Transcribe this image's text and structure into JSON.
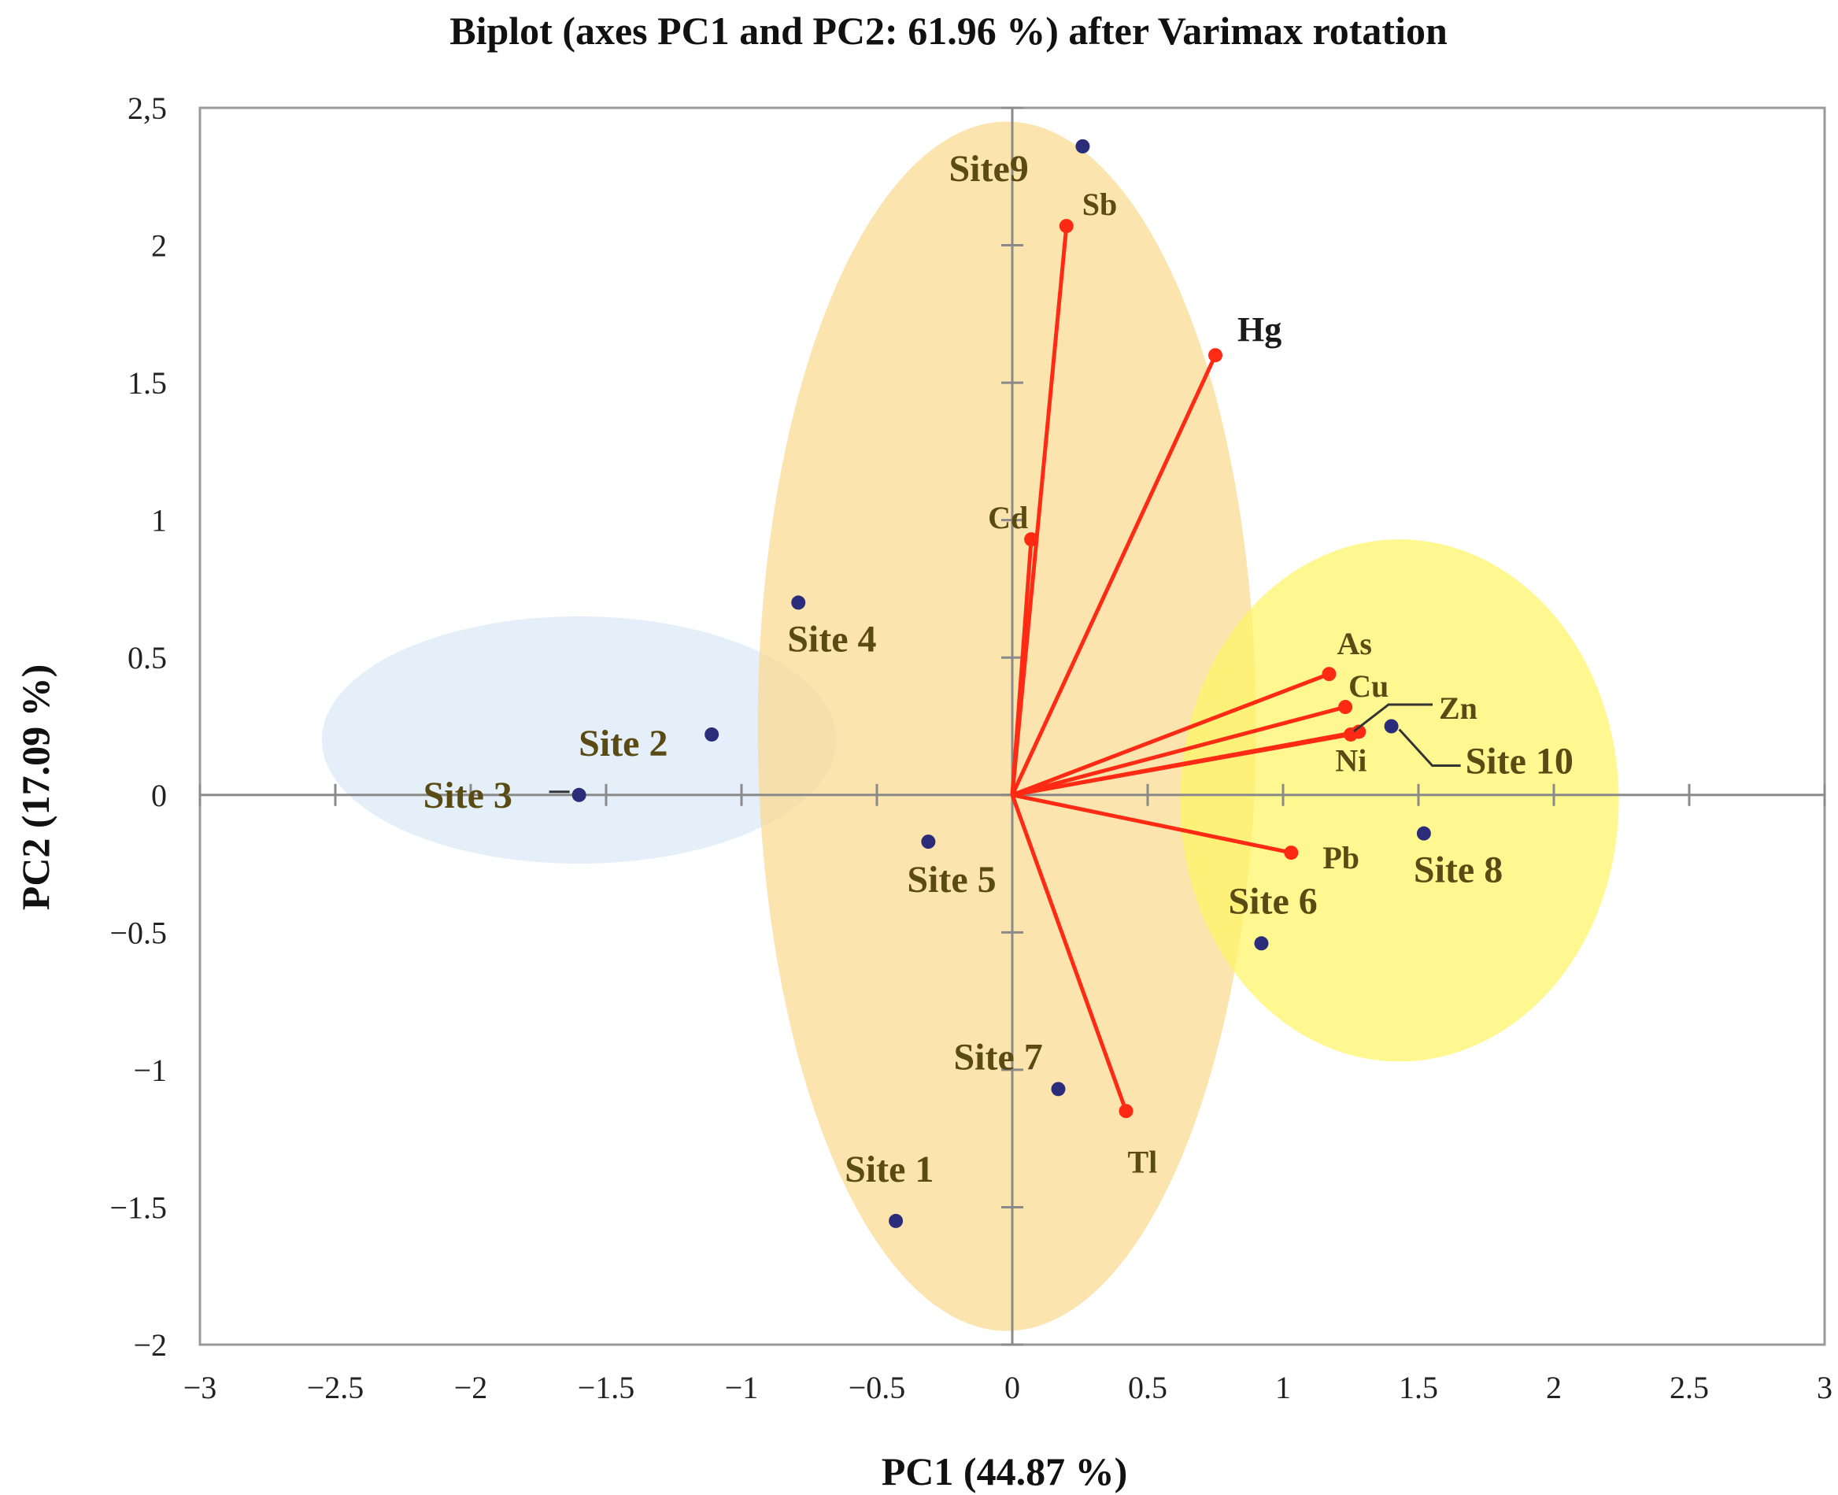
{
  "chart_data": {
    "type": "scatter",
    "subtype": "biplot",
    "title": "Biplot (axes PC1 and PC2: 61.96 %) after Varimax rotation",
    "xlabel": "PC1 (44.87 %)",
    "ylabel": "PC2 (17.09 %)",
    "xlim": [
      -3,
      3
    ],
    "ylim": [
      -2,
      2.5
    ],
    "x_ticks": [
      "−3",
      "−2.5",
      "−2",
      "−1.5",
      "−1",
      "−0.5",
      "0",
      "0.5",
      "1",
      "1.5",
      "2",
      "2.5",
      "3"
    ],
    "y_ticks": [
      "−2",
      "−1.5",
      "−1",
      "−0.5",
      "0",
      "0.5",
      "1",
      "1.5",
      "2",
      "2,5"
    ],
    "grid": false,
    "colors": {
      "variable": "#ff2a14",
      "observation": "#2b2d7a",
      "site_label": "#5a4a14",
      "group_left": "#dbe9f6",
      "group_middle": "#fbd98f",
      "group_right": "#fff566"
    },
    "groups": [
      {
        "name": "left-cluster",
        "center": [
          -1.6,
          0.2
        ],
        "rx": 0.95,
        "ry": 0.45,
        "color": "#dbe9f6"
      },
      {
        "name": "middle-cluster",
        "center": [
          -0.02,
          0.25
        ],
        "rx": 0.92,
        "ry": 2.2,
        "color": "#fbd98f"
      },
      {
        "name": "right-cluster",
        "center": [
          1.43,
          -0.02
        ],
        "rx": 0.81,
        "ry": 0.95,
        "color": "#fff566"
      }
    ],
    "observations": [
      {
        "label": "Site 1",
        "x": -0.43,
        "y": -1.55
      },
      {
        "label": "Site 2",
        "x": -1.11,
        "y": 0.22
      },
      {
        "label": "Site 3",
        "x": -1.6,
        "y": 0.0
      },
      {
        "label": "Site 4",
        "x": -0.79,
        "y": 0.7
      },
      {
        "label": "Site 5",
        "x": -0.31,
        "y": -0.17
      },
      {
        "label": "Site 6",
        "x": 0.92,
        "y": -0.54
      },
      {
        "label": "Site 7",
        "x": 0.17,
        "y": -1.07
      },
      {
        "label": "Site 8",
        "x": 1.52,
        "y": -0.14
      },
      {
        "label": "Site9",
        "x": 0.26,
        "y": 2.36
      },
      {
        "label": "Site 10",
        "x": 1.4,
        "y": 0.25
      }
    ],
    "variables": [
      {
        "label": "Sb",
        "x": 0.2,
        "y": 2.07
      },
      {
        "label": "Hg",
        "x": 0.75,
        "y": 1.6
      },
      {
        "label": "Cd",
        "x": 0.07,
        "y": 0.93
      },
      {
        "label": "As",
        "x": 1.17,
        "y": 0.44
      },
      {
        "label": "Cu",
        "x": 1.23,
        "y": 0.32
      },
      {
        "label": "Zn",
        "x": 1.25,
        "y": 0.22
      },
      {
        "label": "Ni",
        "x": 1.28,
        "y": 0.23
      },
      {
        "label": "Pb",
        "x": 1.03,
        "y": -0.21
      },
      {
        "label": "Tl",
        "x": 0.42,
        "y": -1.15
      }
    ]
  }
}
